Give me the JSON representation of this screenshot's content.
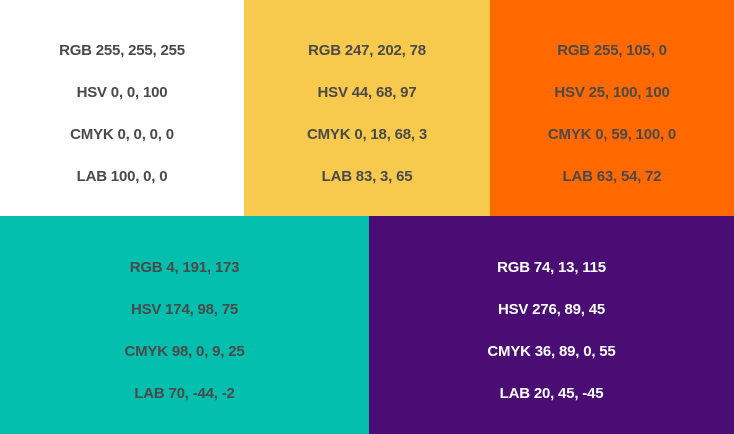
{
  "swatches": [
    {
      "color": "#ffffff",
      "text_color": "#4a4a4a",
      "rgb": "RGB 255, 255, 255",
      "hsv": "HSV 0, 0, 100",
      "cmyk": "CMYK 0, 0, 0, 0",
      "lab": "LAB 100, 0, 0"
    },
    {
      "color": "#f7ca4e",
      "text_color": "#4a4a4a",
      "rgb": "RGB 247, 202, 78",
      "hsv": "HSV 44, 68, 97",
      "cmyk": "CMYK 0, 18, 68, 3",
      "lab": "LAB 83, 3, 65"
    },
    {
      "color": "#ff6900",
      "text_color": "#4a4a4a",
      "rgb": "RGB 255, 105, 0",
      "hsv": "HSV 25, 100, 100",
      "cmyk": "CMYK 0, 59, 100, 0",
      "lab": "LAB 63, 54, 72"
    },
    {
      "color": "#04bfad",
      "text_color": "#4a4a4a",
      "rgb": "RGB 4, 191, 173",
      "hsv": "HSV 174, 98, 75",
      "cmyk": "CMYK 98, 0, 9, 25",
      "lab": "LAB 70, -44, -2"
    },
    {
      "color": "#4a0d73",
      "text_color": "#ffffff",
      "rgb": "RGB 74, 13, 115",
      "hsv": "HSV 276, 89, 45",
      "cmyk": "CMYK 36, 89, 0, 55",
      "lab": "LAB 20, 45, -45"
    }
  ]
}
